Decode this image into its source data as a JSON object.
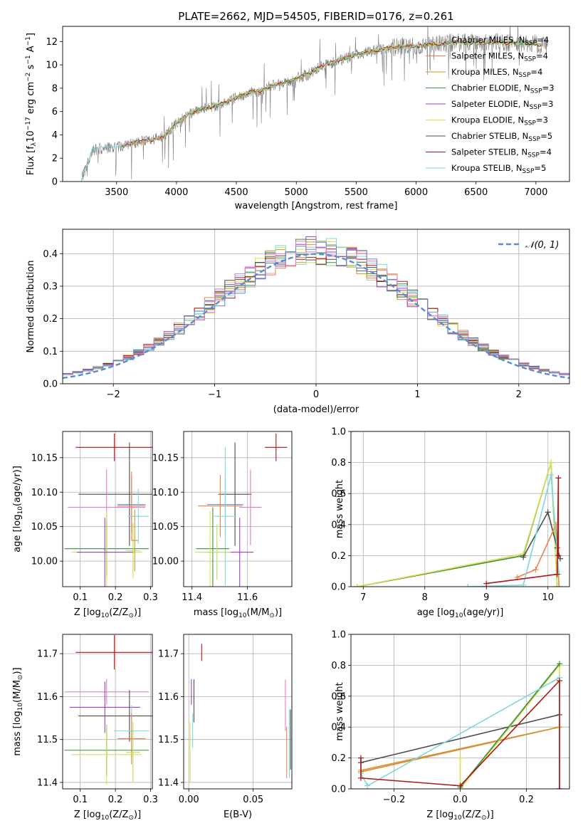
{
  "title": "PLATE=2662, MJD=54505, FIBERID=0176, z=0.261",
  "colors": {
    "chabrier_miles": "#b9b9b9",
    "salpeter_miles": "#e8834a",
    "kroupa_miles": "#c99a2a",
    "chabrier_elodie": "#3f8c3f",
    "salpeter_elodie": "#9b3fc1",
    "kroupa_elodie": "#d6e14f",
    "chabrier_stelib": "#4d4d4d",
    "salpeter_stelib": "#b01515",
    "kroupa_stelib": "#7fd7dc",
    "extra_pink": "#e57bc6",
    "extra_blue": "#5b8bd6",
    "extra_lime": "#b8e05a",
    "normal_curve": "#5b8bd6"
  },
  "chart_data": [
    {
      "type": "line",
      "title": "PLATE=2662, MJD=54505, FIBERID=0176, z=0.261",
      "xlabel": "wavelength [Angstrom, rest frame]",
      "ylabel": "Flux [f",
      "ylabel_sub": "λ",
      "ylabel_rest": "10",
      "ylabel_sup1": "−17",
      "ylabel_mid": " erg cm",
      "ylabel_sup2": "−2",
      "ylabel_mid2": " s",
      "ylabel_sup3": "−1",
      "ylabel_end": " A",
      "ylabel_sup4": "−1",
      "ylabel_close": "]",
      "xlim": [
        3050,
        7280
      ],
      "ylim": [
        0,
        13.3
      ],
      "xticks": [
        "3500",
        "4000",
        "4500",
        "5000",
        "5500",
        "6000",
        "6500",
        "7000"
      ],
      "xtick_values": [
        3500,
        4000,
        4500,
        5000,
        5500,
        6000,
        6500,
        7000
      ],
      "yticks": [
        "0",
        "2",
        "4",
        "6",
        "8",
        "10",
        "12"
      ],
      "ytick_values": [
        0,
        2,
        4,
        6,
        8,
        10,
        12
      ],
      "grid": false,
      "legend_position": "right",
      "legend": [
        {
          "name": "Chabrier MILES, N",
          "sub": "SSP",
          "val": "=4",
          "color_key": "chabrier_miles"
        },
        {
          "name": "Salpeter MILES, N",
          "sub": "SSP",
          "val": "=4",
          "color_key": "salpeter_miles"
        },
        {
          "name": "Kroupa MILES, N",
          "sub": "SSP",
          "val": "=4",
          "color_key": "kroupa_miles"
        },
        {
          "name": "Chabrier ELODIE, N",
          "sub": "SSP",
          "val": "=3",
          "color_key": "chabrier_elodie"
        },
        {
          "name": "Salpeter ELODIE, N",
          "sub": "SSP",
          "val": "=3",
          "color_key": "salpeter_elodie"
        },
        {
          "name": "Kroupa ELODIE, N",
          "sub": "SSP",
          "val": "=3",
          "color_key": "kroupa_elodie"
        },
        {
          "name": "Chabrier STELIB, N",
          "sub": "SSP",
          "val": "=5",
          "color_key": "chabrier_stelib"
        },
        {
          "name": "Salpeter STELIB, N",
          "sub": "SSP",
          "val": "=4",
          "color_key": "salpeter_stelib"
        },
        {
          "name": "Kroupa STELIB, N",
          "sub": "SSP",
          "val": "=5",
          "color_key": "kroupa_stelib"
        }
      ],
      "continuum": {
        "x": [
          3200,
          3300,
          3400,
          3500,
          3600,
          3700,
          3800,
          3900,
          3950,
          4000,
          4100,
          4200,
          4300,
          4400,
          4500,
          4600,
          4700,
          4800,
          4900,
          5000,
          5100,
          5200,
          5300,
          5400,
          5500,
          5600,
          5700,
          5800,
          5900,
          6000,
          6100,
          6200,
          6300,
          6400,
          6500,
          6600,
          6700,
          6800,
          6900,
          7000,
          7100
        ],
        "y": [
          0,
          2.7,
          2.9,
          2.9,
          3.2,
          3.4,
          3.6,
          3.9,
          4.4,
          5.0,
          5.8,
          6.2,
          6.4,
          6.7,
          7.2,
          7.6,
          7.8,
          8.2,
          8.5,
          8.8,
          9.2,
          9.8,
          10.2,
          10.5,
          10.9,
          11.1,
          11.3,
          11.5,
          11.6,
          11.6,
          11.8,
          11.8,
          11.9,
          11.9,
          11.9,
          11.9,
          11.9,
          11.9,
          11.9,
          11.8,
          11.6
        ]
      }
    },
    {
      "type": "line",
      "xlabel": "(data-model)/error",
      "ylabel": "Normed distribution",
      "xlim": [
        -2.5,
        2.5
      ],
      "ylim": [
        0,
        0.475
      ],
      "xticks": [
        "−2",
        "−1",
        "0",
        "1",
        "2"
      ],
      "xtick_values": [
        -2,
        -1,
        0,
        1,
        2
      ],
      "yticks": [
        "0.0",
        "0.1",
        "0.2",
        "0.3",
        "0.4"
      ],
      "ytick_values": [
        0,
        0.1,
        0.2,
        0.3,
        0.4
      ],
      "grid": true,
      "legend_position": "top-right",
      "legend_label": "𝒩(0, 1)",
      "normal": {
        "mean": 0,
        "sigma": 1
      },
      "hist_bin_width": 0.1
    },
    {
      "type": "scatter",
      "xlabel": "Z [log",
      "xlabel_sub": "10",
      "xlabel_rest": "(Z/Z",
      "xlabel_sub2": "⊙",
      "xlabel_end": ")]",
      "ylabel": "age  [log",
      "ylabel_sub": "10",
      "ylabel_rest": "(age/yr)]",
      "xlim": [
        0.05,
        0.305
      ],
      "ylim": [
        9.963,
        10.188
      ],
      "xticks": [
        "0.1",
        "0.2",
        "0.3"
      ],
      "xtick_values": [
        0.1,
        0.2,
        0.3
      ],
      "yticks": [
        "10.00",
        "10.05",
        "10.10",
        "10.15"
      ],
      "ytick_values": [
        10.0,
        10.05,
        10.1,
        10.15
      ],
      "grid": true,
      "points": [
        {
          "x": 0.197,
          "y": 10.165,
          "xerr": 0.11,
          "yerr": 0.02,
          "color_key": "salpeter_stelib"
        },
        {
          "x": 0.24,
          "y": 10.097,
          "xerr": 0.145,
          "yerr": 0.075,
          "color_key": "chabrier_stelib"
        },
        {
          "x": 0.246,
          "y": 10.082,
          "xerr": 0.04,
          "yerr": 0.04,
          "color_key": "extra_blue"
        },
        {
          "x": 0.246,
          "y": 10.08,
          "xerr": 0.04,
          "yerr": 0.05,
          "color_key": "salpeter_miles"
        },
        {
          "x": 0.175,
          "y": 10.078,
          "xerr": 0.11,
          "yerr": 0.055,
          "color_key": "extra_pink"
        },
        {
          "x": 0.265,
          "y": 10.065,
          "xerr": 0.03,
          "yerr": 0.04,
          "color_key": "kroupa_stelib"
        },
        {
          "x": 0.175,
          "y": 10.018,
          "xerr": 0.12,
          "yerr": 0.04,
          "color_key": "chabrier_elodie"
        },
        {
          "x": 0.175,
          "y": 10.013,
          "xerr": 0.1,
          "yerr": 0.06,
          "color_key": "kroupa_elodie"
        },
        {
          "x": 0.25,
          "y": 10.015,
          "xerr": 0.02,
          "yerr": 0.04,
          "color_key": "extra_lime"
        },
        {
          "x": 0.17,
          "y": 10.013,
          "xerr": 0.08,
          "yerr": 0.05,
          "color_key": "salpeter_elodie"
        },
        {
          "x": 0.255,
          "y": 10.03,
          "xerr": 0.01,
          "yerr": 0.045,
          "color_key": "kroupa_miles"
        }
      ]
    },
    {
      "type": "scatter",
      "xlabel": "mass [log",
      "xlabel_sub": "10",
      "xlabel_rest": "(M/M",
      "xlabel_sub2": "⊙",
      "xlabel_end": ")]",
      "xlim": [
        11.37,
        11.76
      ],
      "ylim": [
        9.963,
        10.188
      ],
      "xticks": [
        "11.4",
        "11.6"
      ],
      "xtick_values": [
        11.4,
        11.6
      ],
      "yticks": [
        "10.00",
        "10.05",
        "10.10",
        "10.15"
      ],
      "ytick_values": [
        10.0,
        10.05,
        10.1,
        10.15
      ],
      "grid": true,
      "points": [
        {
          "x": 11.703,
          "y": 10.165,
          "xerr": 0.04,
          "yerr": 0.02,
          "color_key": "salpeter_stelib"
        },
        {
          "x": 11.555,
          "y": 10.097,
          "xerr": 0.06,
          "yerr": 0.075,
          "color_key": "chabrier_stelib"
        },
        {
          "x": 11.52,
          "y": 10.082,
          "xerr": 0.065,
          "yerr": 0.04,
          "color_key": "extra_blue"
        },
        {
          "x": 11.502,
          "y": 10.08,
          "xerr": 0.08,
          "yerr": 0.045,
          "color_key": "salpeter_miles"
        },
        {
          "x": 11.611,
          "y": 10.078,
          "xerr": 0.04,
          "yerr": 0.055,
          "color_key": "extra_pink"
        },
        {
          "x": 11.52,
          "y": 10.065,
          "xerr": 0.04,
          "yerr": 0.1,
          "color_key": "kroupa_stelib"
        },
        {
          "x": 11.475,
          "y": 10.018,
          "xerr": 0.06,
          "yerr": 0.06,
          "color_key": "chabrier_elodie"
        },
        {
          "x": 11.465,
          "y": 10.013,
          "xerr": 0.055,
          "yerr": 0.06,
          "color_key": "kroupa_elodie"
        },
        {
          "x": 11.572,
          "y": 10.013,
          "xerr": 0.05,
          "yerr": 0.05,
          "color_key": "salpeter_elodie"
        },
        {
          "x": 11.49,
          "y": 10.013,
          "xerr": 0.05,
          "yerr": 0.04,
          "color_key": "extra_lime"
        }
      ]
    },
    {
      "type": "line",
      "xlabel": "age  [log",
      "xlabel_sub": "10",
      "xlabel_rest": "(age/yr)]",
      "ylabel": "mass weight",
      "xlim": [
        6.8,
        10.35
      ],
      "ylim": [
        0,
        1.0
      ],
      "xticks": [
        "7",
        "8",
        "9",
        "10"
      ],
      "xtick_values": [
        7,
        8,
        9,
        10
      ],
      "yticks": [
        "0.0",
        "0.2",
        "0.4",
        "0.6",
        "0.8",
        "1.0"
      ],
      "ytick_values": [
        0,
        0.2,
        0.4,
        0.6,
        0.8,
        1.0
      ],
      "grid": true,
      "series": [
        {
          "color_key": "chabrier_elodie",
          "x": [
            6.9,
            9.6,
            10.05,
            10.15
          ],
          "y": [
            0.0,
            0.2,
            0.8,
            0.0
          ]
        },
        {
          "color_key": "kroupa_elodie",
          "x": [
            6.9,
            9.6,
            10.05,
            10.15
          ],
          "y": [
            0.0,
            0.21,
            0.8,
            0.0
          ]
        },
        {
          "color_key": "chabrier_stelib",
          "x": [
            9.6,
            10.0,
            10.15,
            10.2
          ],
          "y": [
            0.19,
            0.48,
            0.25,
            0.18
          ]
        },
        {
          "color_key": "salpeter_miles",
          "x": [
            9.5,
            9.8,
            10.13,
            10.18
          ],
          "y": [
            0.06,
            0.11,
            0.4,
            0.0
          ]
        },
        {
          "color_key": "kroupa_stelib",
          "x": [
            8.7,
            9.6,
            10.05,
            10.18
          ],
          "y": [
            0.0,
            0.01,
            0.72,
            0.08
          ]
        },
        {
          "color_key": "salpeter_stelib",
          "x": [
            9.0,
            10.15,
            10.17,
            10.17
          ],
          "y": [
            0.02,
            0.08,
            0.7,
            0.2
          ]
        }
      ]
    },
    {
      "type": "scatter",
      "xlabel": "Z [log",
      "xlabel_sub": "10",
      "xlabel_rest": "(Z/Z",
      "xlabel_sub2": "⊙",
      "xlabel_end": ")]",
      "ylabel": "mass [log",
      "ylabel_sub": "10",
      "ylabel_rest": "(M/M",
      "ylabel_sub2": "⊙",
      "ylabel_end": ")]",
      "xlim": [
        0.05,
        0.305
      ],
      "ylim": [
        11.385,
        11.745
      ],
      "xticks": [
        "0.1",
        "0.2",
        "0.3"
      ],
      "xtick_values": [
        0.1,
        0.2,
        0.3
      ],
      "yticks": [
        "11.4",
        "11.5",
        "11.6",
        "11.7"
      ],
      "ytick_values": [
        11.4,
        11.5,
        11.6,
        11.7
      ],
      "grid": true,
      "points": [
        {
          "x": 0.197,
          "y": 11.703,
          "xerr": 0.11,
          "yerr": 0.04,
          "color_key": "salpeter_stelib"
        },
        {
          "x": 0.175,
          "y": 11.611,
          "xerr": 0.12,
          "yerr": 0.03,
          "color_key": "extra_pink"
        },
        {
          "x": 0.17,
          "y": 11.575,
          "xerr": 0.1,
          "yerr": 0.06,
          "color_key": "salpeter_elodie"
        },
        {
          "x": 0.24,
          "y": 11.555,
          "xerr": 0.145,
          "yerr": 0.06,
          "color_key": "chabrier_stelib"
        },
        {
          "x": 0.246,
          "y": 11.52,
          "xerr": 0.05,
          "yerr": 0.06,
          "color_key": "kroupa_stelib"
        },
        {
          "x": 0.246,
          "y": 11.502,
          "xerr": 0.04,
          "yerr": 0.06,
          "color_key": "salpeter_miles"
        },
        {
          "x": 0.175,
          "y": 11.475,
          "xerr": 0.12,
          "yerr": 0.06,
          "color_key": "chabrier_elodie"
        },
        {
          "x": 0.175,
          "y": 11.465,
          "xerr": 0.1,
          "yerr": 0.07,
          "color_key": "kroupa_elodie"
        },
        {
          "x": 0.25,
          "y": 11.47,
          "xerr": 0.02,
          "yerr": 0.07,
          "color_key": "extra_lime"
        }
      ]
    },
    {
      "type": "scatter",
      "xlabel": "E(B-V)",
      "xlim": [
        -0.004,
        0.08
      ],
      "ylim": [
        11.385,
        11.745
      ],
      "xticks": [
        "0.00",
        "0.05"
      ],
      "xtick_values": [
        0.0,
        0.05
      ],
      "yticks": [
        "11.4",
        "11.5",
        "11.6",
        "11.7"
      ],
      "ytick_values": [
        11.4,
        11.5,
        11.6,
        11.7
      ],
      "grid": true,
      "points": [
        {
          "x": 0.01,
          "y": 11.703,
          "xerr": 0,
          "yerr": 0.02,
          "color_key": "salpeter_stelib"
        },
        {
          "x": 0.002,
          "y": 11.611,
          "xerr": 0,
          "yerr": 0.03,
          "color_key": "salpeter_elodie"
        },
        {
          "x": 0.004,
          "y": 11.59,
          "xerr": 0,
          "yerr": 0.05,
          "color_key": "chabrier_stelib"
        },
        {
          "x": 0.003,
          "y": 11.52,
          "xerr": 0,
          "yerr": 0.04,
          "color_key": "kroupa_stelib"
        },
        {
          "x": 0.001,
          "y": 11.47,
          "xerr": 0,
          "yerr": 0.07,
          "color_key": "kroupa_elodie"
        },
        {
          "x": 0.075,
          "y": 11.58,
          "xerr": 0,
          "yerr": 0.06,
          "color_key": "extra_pink"
        },
        {
          "x": 0.076,
          "y": 11.47,
          "xerr": 0,
          "yerr": 0.06,
          "color_key": "salpeter_miles"
        },
        {
          "x": 0.078,
          "y": 11.49,
          "xerr": 0,
          "yerr": 0.08,
          "color_key": "kroupa_stelib"
        },
        {
          "x": 0.079,
          "y": 11.5,
          "xerr": 0,
          "yerr": 0.07,
          "color_key": "chabrier_stelib"
        }
      ]
    },
    {
      "type": "line",
      "xlabel": "Z [log",
      "xlabel_sub": "10",
      "xlabel_rest": "(Z/Z",
      "xlabel_sub2": "⊙",
      "xlabel_end": ")]",
      "ylabel": "mass weight",
      "xlim": [
        -0.33,
        0.33
      ],
      "ylim": [
        0,
        1.0
      ],
      "xticks": [
        "−0.2",
        "0.0",
        "0.2"
      ],
      "xtick_values": [
        -0.2,
        0.0,
        0.2
      ],
      "yticks": [
        "0.0",
        "0.2",
        "0.4",
        "0.6",
        "0.8",
        "1.0"
      ],
      "ytick_values": [
        0,
        0.2,
        0.4,
        0.6,
        0.8,
        1.0
      ],
      "grid": true,
      "series": [
        {
          "color_key": "chabrier_stelib",
          "x": [
            -0.3,
            0.3,
            0.3
          ],
          "y": [
            0.17,
            0.48,
            0.0
          ]
        },
        {
          "color_key": "salpeter_miles",
          "x": [
            -0.3,
            0.3,
            0.3
          ],
          "y": [
            0.11,
            0.4,
            0.0
          ]
        },
        {
          "color_key": "kroupa_miles",
          "x": [
            -0.3,
            0.3
          ],
          "y": [
            0.12,
            0.4
          ]
        },
        {
          "color_key": "kroupa_elodie",
          "x": [
            0.0,
            0.0,
            0.3,
            0.3
          ],
          "y": [
            0.2,
            0.0,
            0.8,
            0.0
          ]
        },
        {
          "color_key": "chabrier_elodie",
          "x": [
            0.0,
            0.3
          ],
          "y": [
            0.01,
            0.81
          ]
        },
        {
          "color_key": "kroupa_stelib",
          "x": [
            -0.3,
            -0.28,
            0.3,
            0.3
          ],
          "y": [
            0.1,
            0.02,
            0.72,
            0.0
          ]
        },
        {
          "color_key": "salpeter_stelib",
          "x": [
            -0.3,
            -0.3,
            0.0,
            0.3,
            0.3
          ],
          "y": [
            0.2,
            0.07,
            0.02,
            0.7,
            0.0
          ]
        }
      ]
    }
  ]
}
